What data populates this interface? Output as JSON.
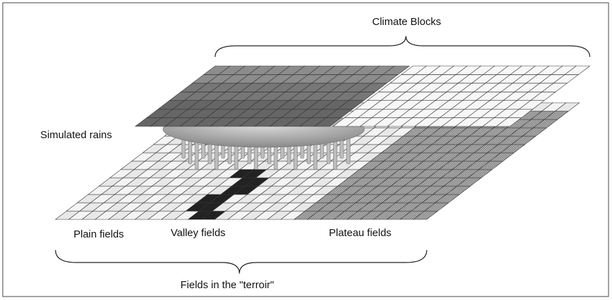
{
  "labels": {
    "climate_blocks": "Climate Blocks",
    "simulated_rains": "Simulated rains",
    "plain_fields": "Plain fields",
    "valley_fields": "Valley fields",
    "plateau_fields": "Plateau fields",
    "terroir": "Fields in the \"terroir\""
  }
}
